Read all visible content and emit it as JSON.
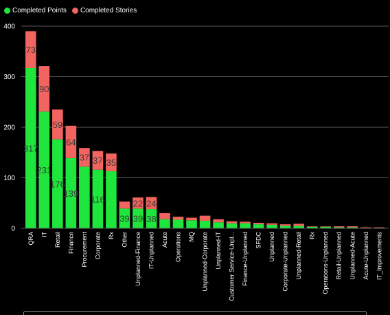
{
  "legend": {
    "points_label": "Completed Points",
    "stories_label": "Completed Stories"
  },
  "colors": {
    "points": "#1ee63c",
    "stories": "#f1645f",
    "grid": "#5a5a5a",
    "axis_text": "#ffffff",
    "data_label": "#3a3a3a"
  },
  "chart_data": {
    "type": "bar",
    "stacked": true,
    "ylim": [
      0,
      400
    ],
    "yticks": [
      0,
      100,
      200,
      300,
      400
    ],
    "grid": true,
    "legend_position": "top-left",
    "categories": [
      "QRA",
      "IT",
      "Retail",
      "Finance",
      "Procurement",
      "Corporate",
      "Rx",
      "Other",
      "Unplanned-Finance",
      "IT-Unplanned",
      "Acute",
      "Operations",
      "MQ",
      "Unplanned-Corporate",
      "Unplanned-IT",
      "Customer Service-Unpl...",
      "Finance-Unplanned",
      "SFDC",
      "Unplanned",
      "Corporate-Unplanned",
      "Unplanned-Retail",
      "Rx",
      "Operations-Unplanned",
      "Retail-Unplanned",
      "Unplanned-Acute",
      "Acute-Unplanned",
      "IT_Improvements"
    ],
    "series": [
      {
        "name": "Completed Points",
        "values": [
          317,
          231,
          176,
          139,
          122,
          116,
          113,
          39,
          39,
          38,
          18,
          17,
          16,
          15,
          12,
          10,
          10,
          8,
          7,
          5,
          5,
          3,
          3,
          2,
          2,
          1,
          1
        ],
        "labels": [
          "317",
          "231",
          "176",
          "139",
          "",
          "116",
          "",
          "39",
          "39",
          "38",
          "",
          "",
          "",
          "",
          "",
          "",
          "",
          "",
          "",
          "",
          "",
          "",
          "",
          "",
          "",
          "",
          ""
        ]
      },
      {
        "name": "Completed Stories",
        "values": [
          73,
          90,
          59,
          64,
          37,
          37,
          35,
          14,
          22,
          24,
          12,
          6,
          5,
          10,
          6,
          4,
          3,
          3,
          3,
          3,
          4,
          1,
          1,
          2,
          2,
          1,
          1
        ],
        "labels": [
          "73",
          "90",
          "59",
          "64",
          "37",
          "37",
          "35",
          "",
          "22",
          "24",
          "",
          "",
          "",
          "",
          "",
          "",
          "",
          "",
          "",
          "",
          "",
          "",
          "",
          "",
          "",
          "",
          ""
        ]
      }
    ]
  }
}
